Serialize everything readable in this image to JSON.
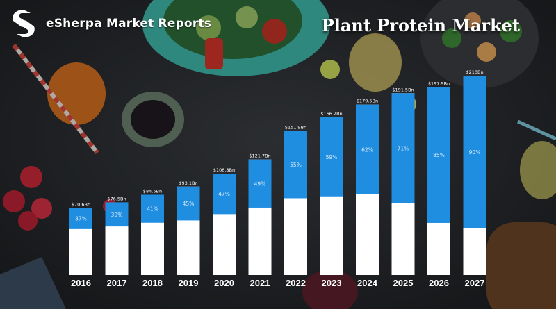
{
  "brand": {
    "name": "eSherpa Market Reports",
    "logo_icon": "esherpa-logo-icon",
    "color": "#ffffff"
  },
  "colors": {
    "bar_top": "#1f8de0",
    "bar_bottom": "#ffffff",
    "background": "#2a2d31"
  },
  "chart_data": {
    "type": "bar",
    "title": "Plant Protein Market",
    "xlabel": "",
    "ylabel": "",
    "stacked": true,
    "ylim": [
      0,
      210
    ],
    "categories": [
      "2016",
      "2017",
      "2018",
      "2019",
      "2020",
      "2021",
      "2022",
      "2023",
      "2024",
      "2025",
      "2026",
      "2027"
    ],
    "value_labels": [
      "$70.6Bn",
      "$76.5Bn",
      "$84.5Bn",
      "$93.1Bn",
      "$106.8Bn",
      "$121.7Bn",
      "$151.9Bn",
      "$166.2Bn",
      "$179.5Bn",
      "$191.5Bn",
      "$197.9Bn",
      "$210Bn"
    ],
    "totals": [
      70.6,
      76.5,
      84.5,
      93.1,
      106.8,
      121.7,
      151.9,
      166.2,
      179.5,
      191.5,
      197.9,
      210
    ],
    "share_labels": [
      "37%",
      "39%",
      "41%",
      "45%",
      "47%",
      "49%",
      "55%",
      "59%",
      "62%",
      "71%",
      "85%",
      "90%"
    ],
    "top_share": [
      37,
      39,
      41,
      45,
      47,
      49,
      55,
      59,
      62,
      71,
      85,
      90
    ],
    "legend": "none",
    "grid": false
  }
}
